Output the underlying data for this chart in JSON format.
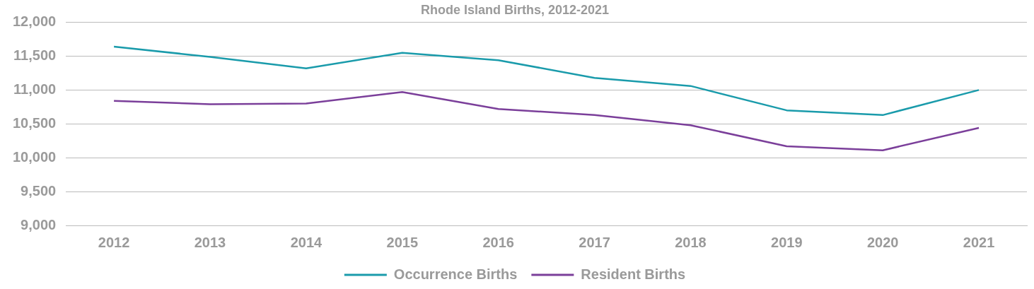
{
  "chart_data": {
    "type": "line",
    "title": "Rhode Island Births, 2012-2021",
    "categories": [
      "2012",
      "2013",
      "2014",
      "2015",
      "2016",
      "2017",
      "2018",
      "2019",
      "2020",
      "2021"
    ],
    "series": [
      {
        "name": "Occurrence Births",
        "color": "#1a9bab",
        "values": [
          11640,
          11490,
          11320,
          11550,
          11440,
          11180,
          11060,
          10700,
          10630,
          11000
        ]
      },
      {
        "name": "Resident Births",
        "color": "#7b3f9a",
        "values": [
          10840,
          10790,
          10800,
          10970,
          10720,
          10630,
          10480,
          10170,
          10110,
          10440
        ]
      }
    ],
    "ylim": [
      9000,
      12000
    ],
    "yticks": [
      {
        "value": 9000,
        "label": "9,000"
      },
      {
        "value": 9500,
        "label": "9,500"
      },
      {
        "value": 10000,
        "label": "10,000"
      },
      {
        "value": 10500,
        "label": "10,500"
      },
      {
        "value": 11000,
        "label": "11,000"
      },
      {
        "value": 11500,
        "label": "11,500"
      },
      {
        "value": 12000,
        "label": "12,000"
      }
    ],
    "grid": "y",
    "legend": "bottom",
    "marker": "none",
    "line_style": "solid"
  }
}
